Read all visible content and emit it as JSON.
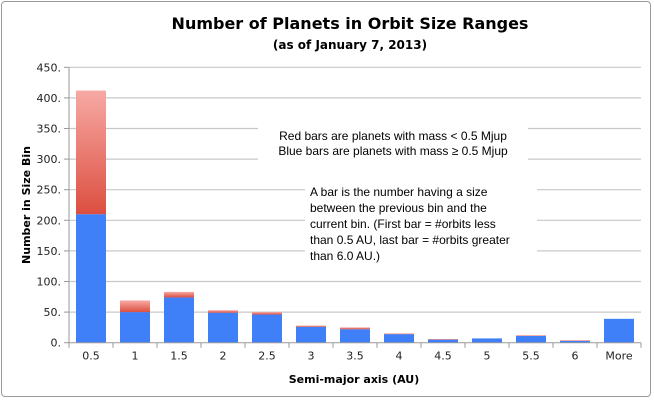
{
  "chart_data": {
    "type": "bar",
    "stacked": true,
    "title": "Number of Planets in Orbit Size Ranges",
    "subtitle": "(as of January 7, 2013)",
    "xlabel": "Semi-major axis (AU)",
    "ylabel": "Number in Size Bin",
    "ylim": [
      0,
      450
    ],
    "yticks": [
      "0.",
      "50.",
      "100.",
      "150.",
      "200.",
      "250.",
      "300.",
      "350.",
      "400.",
      "450."
    ],
    "grid": true,
    "categories": [
      "0.5",
      "1",
      "1.5",
      "2",
      "2.5",
      "3",
      "3.5",
      "4",
      "4.5",
      "5",
      "5.5",
      "6",
      "More"
    ],
    "series": [
      {
        "color": "#3f7ff7",
        "values": [
          210,
          50,
          74,
          49,
          46,
          26,
          22,
          14,
          5,
          7,
          11,
          3,
          39
        ]
      },
      {
        "color": "#e05a4e",
        "values": [
          202,
          19,
          9,
          4,
          4,
          2,
          3,
          1,
          1,
          0,
          1,
          1,
          0
        ]
      }
    ],
    "annotations": [
      [
        "Red bars are planets with mass < 0.5 Mjup",
        "Blue bars are planets with mass ≥ 0.5 Mjup"
      ],
      [
        "A bar is the number having a size",
        "between the previous bin and the",
        "current bin. (First bar = #orbits less",
        "than 0.5 AU, last bar = #orbits greater",
        "than 6.0 AU.)"
      ]
    ]
  }
}
